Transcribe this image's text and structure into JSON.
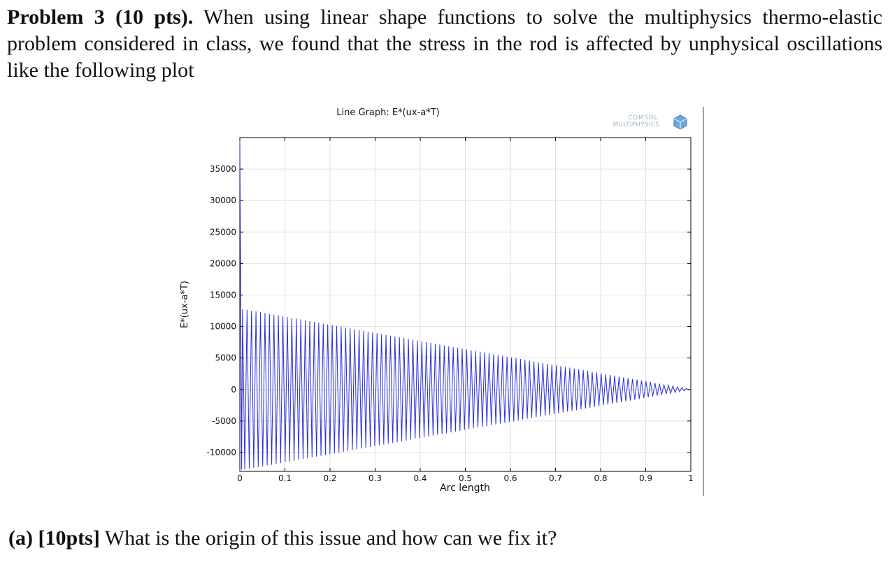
{
  "problem": {
    "label": "Problem 3",
    "points": "(10 pts).",
    "text": "When using linear shape functions to solve the multiphysics thermo-elastic problem considered in class, we found that the stress in the rod is affected by unphysical oscillations like the following plot"
  },
  "figure": {
    "logo_text": [
      "COMSOL",
      "MULTIPHYSICS"
    ],
    "chart_data": {
      "type": "line",
      "title": "Line Graph: E*(ux-a*T)",
      "xlabel": "Arc length",
      "ylabel": "E*(ux-a*T)",
      "xlim": [
        0,
        1
      ],
      "ylim": [
        -13000,
        40000
      ],
      "xticks": [
        "0",
        "0.1",
        "0.2",
        "0.3",
        "0.4",
        "0.5",
        "0.6",
        "0.7",
        "0.8",
        "0.9",
        "1"
      ],
      "yticks": [
        "35000",
        "30000",
        "25000",
        "20000",
        "15000",
        "10000",
        "5000",
        "0",
        "-5000",
        "-10000"
      ],
      "grid": true,
      "series": [
        {
          "color": "#2a2fd8",
          "description_points": {
            "x": [
              0.0,
              0.012,
              0.5,
              0.98,
              1.0
            ],
            "y_upper": [
              39500,
              12700,
              6400,
              300,
              0
            ],
            "y_lower": [
              39500,
              -12700,
              -6400,
              -300,
              0
            ]
          },
          "oscillation_cycles": 100
        }
      ]
    }
  },
  "subquestion": {
    "label": "(a)",
    "points": "[10pts]",
    "text": "What is the origin of this issue and how can we fix it?"
  }
}
